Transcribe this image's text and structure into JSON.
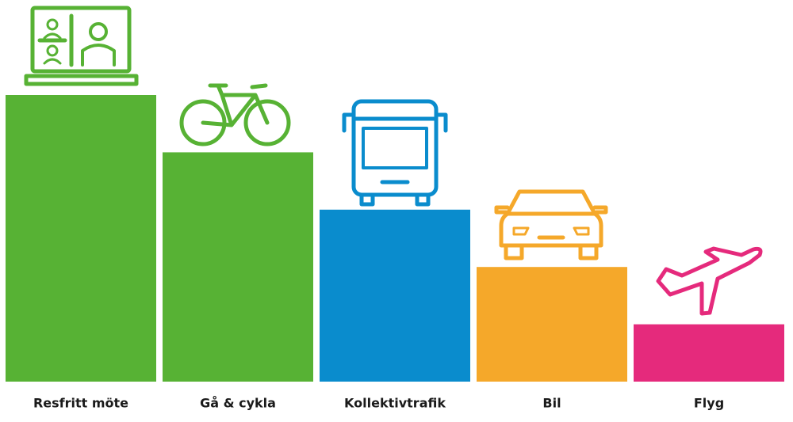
{
  "chart_data": {
    "type": "bar",
    "categories": [
      "Resfritt möte",
      "Gå & cykla",
      "Kollektivtrafik",
      "Bil",
      "Flyg"
    ],
    "values": [
      5,
      4,
      3,
      2,
      1
    ],
    "colors": [
      "#57b234",
      "#57b234",
      "#0a8ccd",
      "#f5a82a",
      "#e52a7c"
    ],
    "ylim": [
      0,
      5
    ]
  }
}
